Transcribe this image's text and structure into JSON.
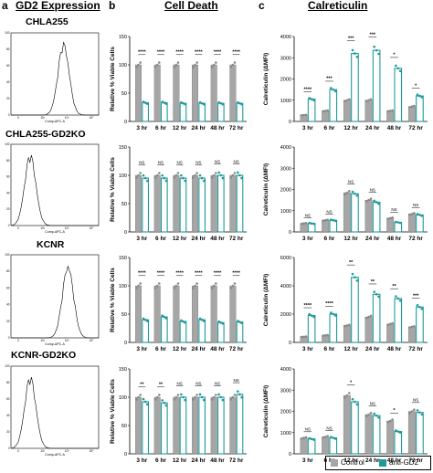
{
  "headers": {
    "a_letter": "a",
    "a_title": "GD2 Expression",
    "b_letter": "b",
    "b_title": "Cell Death",
    "c_letter": "c",
    "c_title": "Calreticulin"
  },
  "rows": [
    {
      "cell_line": "CHLA255",
      "flow_xlabel": "Comp-APC-A"
    },
    {
      "cell_line": "CHLA255-GD2KO",
      "flow_xlabel": "Comp-APC-A"
    },
    {
      "cell_line": "KCNR",
      "flow_xlabel": "Comp-APC-A"
    },
    {
      "cell_line": "KCNR-GD2KO",
      "flow_xlabel": "Comp-APC-A"
    }
  ],
  "flow_yticks": [
    "100",
    "80",
    "60",
    "40",
    "20",
    "0"
  ],
  "flow_xticks": [
    "0",
    "10³",
    "10⁴",
    "10⁵"
  ],
  "legend": {
    "control_label": "Control",
    "anti_label": "anti-GD2",
    "control_color": "#a6a6a6",
    "anti_color": "#1f9a9a"
  },
  "chart_data": [
    {
      "type": "bar",
      "panel": "b",
      "row": 0,
      "ylabel": "Relative % Viable Cells",
      "ylim": [
        0,
        150
      ],
      "yticks": [
        0,
        50,
        100,
        150
      ],
      "categories": [
        "3 hr",
        "6 hr",
        "12 hr",
        "24 hr",
        "48 hr",
        "72 hr"
      ],
      "series": [
        {
          "name": "Control",
          "values": [
            100,
            100,
            100,
            100,
            100,
            100
          ]
        },
        {
          "name": "anti-GD2",
          "values": [
            33,
            33,
            32,
            32,
            32,
            32
          ]
        }
      ],
      "significance": [
        "****",
        "****",
        "****",
        "****",
        "****",
        "****"
      ]
    },
    {
      "type": "bar",
      "panel": "c",
      "row": 0,
      "ylabel": "Calreticulin (ΔMFI)",
      "ylim": [
        0,
        4000
      ],
      "yticks": [
        0,
        1000,
        2000,
        3000,
        4000
      ],
      "categories": [
        "3 hr",
        "6 hr",
        "12 hr",
        "24 hr",
        "48 hr",
        "72 hr"
      ],
      "series": [
        {
          "name": "Control",
          "values": [
            300,
            500,
            1000,
            1000,
            500,
            700
          ]
        },
        {
          "name": "anti-GD2",
          "values": [
            1050,
            1500,
            3200,
            3350,
            2500,
            1200
          ]
        }
      ],
      "significance": [
        "****",
        "***",
        "***",
        "***",
        "*",
        "*"
      ]
    },
    {
      "type": "bar",
      "panel": "b",
      "row": 1,
      "ylabel": "Relative % Viable Cells",
      "ylim": [
        0,
        150
      ],
      "yticks": [
        0,
        50,
        100,
        150
      ],
      "categories": [
        "3 hr",
        "6 hr",
        "12 hr",
        "24 hr",
        "48 hr",
        "72 hr"
      ],
      "series": [
        {
          "name": "Control",
          "values": [
            100,
            100,
            100,
            100,
            100,
            100
          ]
        },
        {
          "name": "anti-GD2",
          "values": [
            95,
            95,
            95,
            95,
            100,
            100
          ]
        }
      ],
      "significance": [
        "NS",
        "NS",
        "NS",
        "NS",
        "NS",
        "NS"
      ]
    },
    {
      "type": "bar",
      "panel": "c",
      "row": 1,
      "ylabel": "Calreticulin (ΔMFI)",
      "ylim": [
        0,
        4000
      ],
      "yticks": [
        0,
        1000,
        2000,
        3000,
        4000
      ],
      "categories": [
        "3 hr",
        "6 hr",
        "12 hr",
        "24 hr",
        "48 hr",
        "72 hr"
      ],
      "series": [
        {
          "name": "Control",
          "values": [
            400,
            550,
            1850,
            1500,
            650,
            850
          ]
        },
        {
          "name": "anti-GD2",
          "values": [
            400,
            550,
            1800,
            1400,
            450,
            800
          ]
        }
      ],
      "significance": [
        "NS",
        "NS",
        "NS",
        "NS",
        "NS",
        "NS"
      ]
    },
    {
      "type": "bar",
      "panel": "b",
      "row": 2,
      "ylabel": "Relative % Viable Cells",
      "ylim": [
        0,
        150
      ],
      "yticks": [
        0,
        50,
        100,
        150
      ],
      "categories": [
        "3 hr",
        "6 hr",
        "12 hr",
        "24 hr",
        "48 hr",
        "72 hr"
      ],
      "series": [
        {
          "name": "Control",
          "values": [
            100,
            100,
            100,
            100,
            100,
            100
          ]
        },
        {
          "name": "anti-GD2",
          "values": [
            40,
            45,
            37,
            40,
            35,
            36
          ]
        }
      ],
      "significance": [
        "****",
        "****",
        "****",
        "****",
        "****",
        "****"
      ]
    },
    {
      "type": "bar",
      "panel": "c",
      "row": 2,
      "ylabel": "Calreticulin (ΔMFI)",
      "ylim": [
        0,
        6000
      ],
      "yticks": [
        0,
        2000,
        4000,
        6000
      ],
      "categories": [
        "3 hr",
        "6 hr",
        "12 hr",
        "24 hr",
        "48 hr",
        "72 hr"
      ],
      "series": [
        {
          "name": "Control",
          "values": [
            400,
            500,
            1200,
            1800,
            1300,
            1100
          ]
        },
        {
          "name": "anti-GD2",
          "values": [
            1900,
            2000,
            4600,
            3400,
            3100,
            2500
          ]
        }
      ],
      "significance": [
        "****",
        "****",
        "**",
        "**",
        "**",
        "***"
      ]
    },
    {
      "type": "bar",
      "panel": "b",
      "row": 3,
      "ylabel": "Relative % Viable Cells",
      "ylim": [
        0,
        150
      ],
      "yticks": [
        0,
        50,
        100,
        150
      ],
      "categories": [
        "3 hr",
        "6 hr",
        "12 hr",
        "24 hr",
        "48 hr",
        "72 hr"
      ],
      "series": [
        {
          "name": "Control",
          "values": [
            100,
            100,
            100,
            100,
            100,
            100
          ]
        },
        {
          "name": "anti-GD2",
          "values": [
            92,
            90,
            100,
            100,
            100,
            105
          ]
        }
      ],
      "significance": [
        "**",
        "**",
        "NS",
        "NS",
        "NS",
        "NS"
      ]
    },
    {
      "type": "bar",
      "panel": "c",
      "row": 3,
      "ylabel": "Calreticulin (ΔMFI)",
      "ylim": [
        0,
        4000
      ],
      "yticks": [
        0,
        1000,
        2000,
        3000,
        4000
      ],
      "categories": [
        "3 hr",
        "6 hr",
        "12 hr",
        "24 hr",
        "48 hr",
        "72 hr"
      ],
      "series": [
        {
          "name": "Control",
          "values": [
            750,
            800,
            2750,
            1850,
            1550,
            2000
          ]
        },
        {
          "name": "anti-GD2",
          "values": [
            700,
            750,
            2450,
            1800,
            1050,
            1950
          ]
        }
      ],
      "significance": [
        "NS",
        "NS",
        "*",
        "NS",
        "*",
        "NS"
      ]
    }
  ]
}
